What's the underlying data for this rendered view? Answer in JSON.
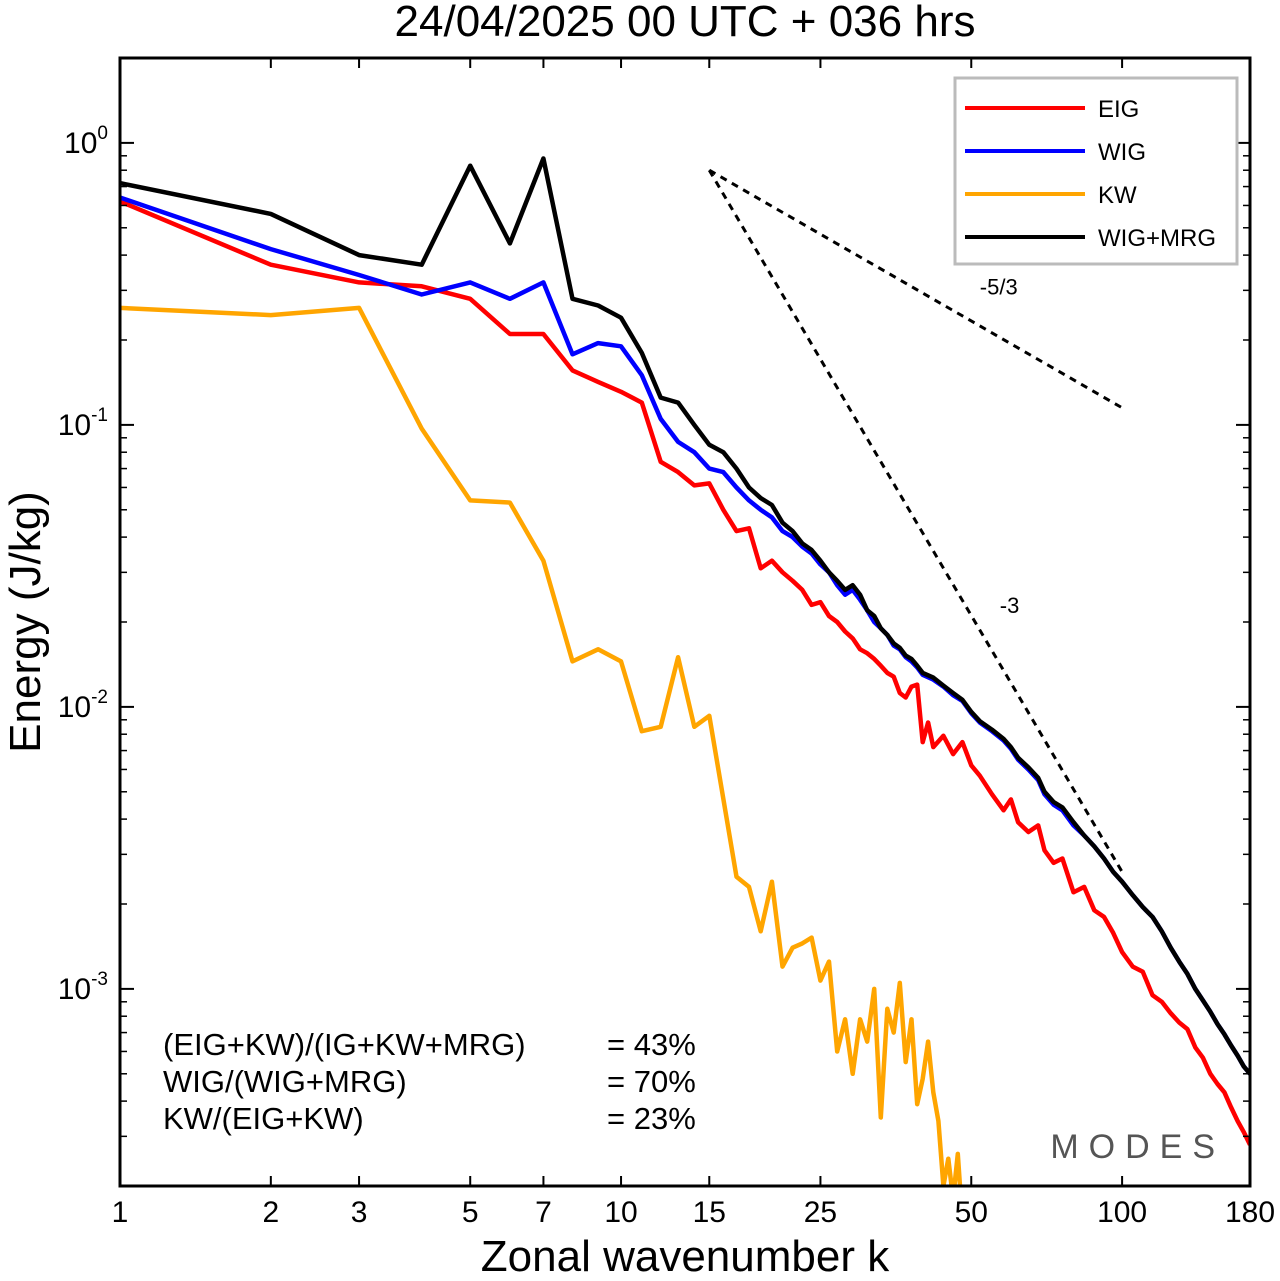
{
  "chart_data": {
    "type": "line",
    "title": "24/04/2025  00 UTC  + 036 hrs",
    "xlabel": "Zonal wavenumber k",
    "ylabel": "Energy (J/kg)",
    "x_scale": "log",
    "y_scale": "log",
    "xlim": [
      1,
      180
    ],
    "ylim": [
      0.0002,
      2.0
    ],
    "x_ticks": [
      1,
      2,
      3,
      5,
      7,
      10,
      15,
      25,
      50,
      100,
      180
    ],
    "y_ticks": [
      {
        "base": "10",
        "exp": "0",
        "value": 1
      },
      {
        "base": "10",
        "exp": "-1",
        "value": 0.1
      },
      {
        "base": "10",
        "exp": "-2",
        "value": 0.01
      },
      {
        "base": "10",
        "exp": "-3",
        "value": 0.001
      }
    ],
    "legend_position": "top-right",
    "series": [
      {
        "name": "EIG",
        "color": "#ff0000",
        "points": [
          [
            1,
            0.62
          ],
          [
            2,
            0.37
          ],
          [
            3,
            0.32
          ],
          [
            4,
            0.31
          ],
          [
            5,
            0.28
          ],
          [
            6,
            0.21
          ],
          [
            7,
            0.21
          ],
          [
            8,
            0.156
          ],
          [
            9,
            0.142
          ],
          [
            10,
            0.131
          ],
          [
            11,
            0.12
          ],
          [
            12,
            0.074
          ],
          [
            13,
            0.068
          ],
          [
            14,
            0.061
          ],
          [
            15,
            0.062
          ],
          [
            16,
            0.05
          ],
          [
            17,
            0.042
          ],
          [
            18,
            0.043
          ],
          [
            19,
            0.031
          ],
          [
            20,
            0.033
          ],
          [
            21,
            0.03
          ],
          [
            22,
            0.028
          ],
          [
            23,
            0.026
          ],
          [
            24,
            0.023
          ],
          [
            25,
            0.0235
          ],
          [
            26,
            0.021
          ],
          [
            27,
            0.02
          ],
          [
            28,
            0.0185
          ],
          [
            29,
            0.0175
          ],
          [
            30,
            0.016
          ],
          [
            31,
            0.0155
          ],
          [
            32,
            0.0148
          ],
          [
            33,
            0.014
          ],
          [
            34,
            0.0132
          ],
          [
            35,
            0.0128
          ],
          [
            36,
            0.0112
          ],
          [
            37,
            0.0108
          ],
          [
            38,
            0.0118
          ],
          [
            39,
            0.012
          ],
          [
            40,
            0.0075
          ],
          [
            41,
            0.0088
          ],
          [
            42,
            0.0072
          ],
          [
            44,
            0.0079
          ],
          [
            46,
            0.0068
          ],
          [
            48,
            0.0075
          ],
          [
            50,
            0.0062
          ],
          [
            52,
            0.0057
          ],
          [
            55,
            0.0049
          ],
          [
            58,
            0.0043
          ],
          [
            60,
            0.0047
          ],
          [
            62,
            0.0039
          ],
          [
            65,
            0.0036
          ],
          [
            68,
            0.0038
          ],
          [
            70,
            0.0031
          ],
          [
            73,
            0.0028
          ],
          [
            76,
            0.0029
          ],
          [
            80,
            0.0022
          ],
          [
            84,
            0.0023
          ],
          [
            88,
            0.0019
          ],
          [
            92,
            0.0018
          ],
          [
            96,
            0.00158
          ],
          [
            100,
            0.00135
          ],
          [
            105,
            0.0012
          ],
          [
            110,
            0.00115
          ],
          [
            115,
            0.00095
          ],
          [
            120,
            0.0009
          ],
          [
            125,
            0.00082
          ],
          [
            130,
            0.00076
          ],
          [
            135,
            0.00072
          ],
          [
            140,
            0.00062
          ],
          [
            145,
            0.00057
          ],
          [
            150,
            0.0005
          ],
          [
            155,
            0.00046
          ],
          [
            160,
            0.00043
          ],
          [
            165,
            0.00038
          ],
          [
            170,
            0.00034
          ],
          [
            175,
            0.00031
          ],
          [
            180,
            0.00028
          ]
        ]
      },
      {
        "name": "WIG",
        "color": "#0000ff",
        "points": [
          [
            1,
            0.64
          ],
          [
            2,
            0.42
          ],
          [
            3,
            0.34
          ],
          [
            4,
            0.29
          ],
          [
            5,
            0.32
          ],
          [
            6,
            0.28
          ],
          [
            7,
            0.32
          ],
          [
            8,
            0.178
          ],
          [
            9,
            0.195
          ],
          [
            10,
            0.19
          ],
          [
            11,
            0.15
          ],
          [
            12,
            0.105
          ],
          [
            13,
            0.087
          ],
          [
            14,
            0.08
          ],
          [
            15,
            0.07
          ],
          [
            16,
            0.068
          ],
          [
            17,
            0.06
          ],
          [
            18,
            0.054
          ],
          [
            19,
            0.05
          ],
          [
            20,
            0.047
          ],
          [
            21,
            0.042
          ],
          [
            22,
            0.04
          ],
          [
            23,
            0.037
          ],
          [
            24,
            0.035
          ],
          [
            25,
            0.032
          ],
          [
            26,
            0.03
          ],
          [
            27,
            0.027
          ],
          [
            28,
            0.025
          ],
          [
            29,
            0.026
          ],
          [
            30,
            0.024
          ],
          [
            31,
            0.022
          ],
          [
            32,
            0.02
          ],
          [
            33,
            0.019
          ],
          [
            34,
            0.018
          ],
          [
            35,
            0.0165
          ],
          [
            36,
            0.016
          ],
          [
            37,
            0.015
          ],
          [
            38,
            0.0145
          ],
          [
            39,
            0.0138
          ],
          [
            40,
            0.013
          ],
          [
            42,
            0.0125
          ],
          [
            44,
            0.0118
          ],
          [
            46,
            0.011
          ],
          [
            48,
            0.0105
          ],
          [
            50,
            0.0095
          ],
          [
            52,
            0.0088
          ],
          [
            55,
            0.0082
          ],
          [
            58,
            0.0076
          ],
          [
            60,
            0.0071
          ],
          [
            62,
            0.0065
          ],
          [
            65,
            0.006
          ],
          [
            68,
            0.0055
          ],
          [
            70,
            0.0049
          ],
          [
            73,
            0.0045
          ],
          [
            76,
            0.0043
          ],
          [
            80,
            0.0038
          ],
          [
            84,
            0.0035
          ],
          [
            88,
            0.0032
          ],
          [
            92,
            0.0029
          ],
          [
            96,
            0.0026
          ],
          [
            100,
            0.0024
          ],
          [
            105,
            0.00215
          ],
          [
            110,
            0.00195
          ],
          [
            115,
            0.0018
          ],
          [
            120,
            0.0016
          ],
          [
            125,
            0.0014
          ],
          [
            130,
            0.00125
          ],
          [
            135,
            0.00113
          ],
          [
            140,
            0.001
          ],
          [
            145,
            0.00091
          ],
          [
            150,
            0.00083
          ],
          [
            155,
            0.00075
          ],
          [
            160,
            0.00069
          ],
          [
            165,
            0.00063
          ],
          [
            170,
            0.00058
          ],
          [
            175,
            0.00053
          ],
          [
            180,
            0.0005
          ]
        ]
      },
      {
        "name": "KW",
        "color": "#ffa500",
        "points": [
          [
            1,
            0.26
          ],
          [
            2,
            0.245
          ],
          [
            3,
            0.26
          ],
          [
            4,
            0.097
          ],
          [
            5,
            0.054
          ],
          [
            6,
            0.053
          ],
          [
            7,
            0.033
          ],
          [
            8,
            0.0145
          ],
          [
            9,
            0.016
          ],
          [
            10,
            0.0145
          ],
          [
            11,
            0.0082
          ],
          [
            12,
            0.0085
          ],
          [
            13,
            0.015
          ],
          [
            14,
            0.0085
          ],
          [
            15,
            0.0093
          ],
          [
            17,
            0.0025
          ],
          [
            18,
            0.0023
          ],
          [
            19,
            0.0016
          ],
          [
            20,
            0.0024
          ],
          [
            21,
            0.0012
          ],
          [
            22,
            0.0014
          ],
          [
            23,
            0.00145
          ],
          [
            24,
            0.00152
          ],
          [
            25,
            0.00107
          ],
          [
            26,
            0.00125
          ],
          [
            27,
            0.0006
          ],
          [
            28,
            0.00078
          ],
          [
            29,
            0.0005
          ],
          [
            30,
            0.00078
          ],
          [
            31,
            0.00065
          ],
          [
            32,
            0.001
          ],
          [
            33,
            0.00035
          ],
          [
            34,
            0.00085
          ],
          [
            35,
            0.0007
          ],
          [
            36,
            0.00105
          ],
          [
            37,
            0.00055
          ],
          [
            38,
            0.00078
          ],
          [
            39,
            0.00039
          ],
          [
            40,
            0.00048
          ],
          [
            41,
            0.00065
          ],
          [
            42,
            0.00043
          ],
          [
            43,
            0.00034
          ],
          [
            44,
            0.0002
          ],
          [
            45,
            0.00025
          ],
          [
            46,
            0.00018
          ],
          [
            47,
            0.00026
          ],
          [
            48,
            0.00015
          ],
          [
            50,
            0.0002
          ]
        ]
      },
      {
        "name": "WIG+MRG",
        "color": "#000000",
        "points": [
          [
            1,
            0.72
          ],
          [
            2,
            0.56
          ],
          [
            3,
            0.4
          ],
          [
            4,
            0.37
          ],
          [
            5,
            0.83
          ],
          [
            6,
            0.44
          ],
          [
            7,
            0.88
          ],
          [
            8,
            0.28
          ],
          [
            9,
            0.265
          ],
          [
            10,
            0.24
          ],
          [
            11,
            0.18
          ],
          [
            12,
            0.125
          ],
          [
            13,
            0.12
          ],
          [
            14,
            0.1
          ],
          [
            15,
            0.085
          ],
          [
            16,
            0.08
          ],
          [
            17,
            0.07
          ],
          [
            18,
            0.06
          ],
          [
            19,
            0.055
          ],
          [
            20,
            0.052
          ],
          [
            21,
            0.045
          ],
          [
            22,
            0.042
          ],
          [
            23,
            0.038
          ],
          [
            24,
            0.036
          ],
          [
            25,
            0.033
          ],
          [
            26,
            0.03
          ],
          [
            27,
            0.028
          ],
          [
            28,
            0.026
          ],
          [
            29,
            0.027
          ],
          [
            30,
            0.025
          ],
          [
            31,
            0.022
          ],
          [
            32,
            0.021
          ],
          [
            33,
            0.019
          ],
          [
            34,
            0.018
          ],
          [
            35,
            0.0168
          ],
          [
            36,
            0.0162
          ],
          [
            37,
            0.0152
          ],
          [
            38,
            0.0148
          ],
          [
            39,
            0.014
          ],
          [
            40,
            0.0132
          ],
          [
            42,
            0.0127
          ],
          [
            44,
            0.0119
          ],
          [
            46,
            0.0112
          ],
          [
            48,
            0.0106
          ],
          [
            50,
            0.0096
          ],
          [
            52,
            0.0089
          ],
          [
            55,
            0.0083
          ],
          [
            58,
            0.0077
          ],
          [
            60,
            0.0072
          ],
          [
            62,
            0.0066
          ],
          [
            65,
            0.0061
          ],
          [
            68,
            0.0056
          ],
          [
            70,
            0.005
          ],
          [
            73,
            0.0046
          ],
          [
            76,
            0.0044
          ],
          [
            80,
            0.0039
          ],
          [
            84,
            0.0035
          ],
          [
            88,
            0.0032
          ],
          [
            92,
            0.0029
          ],
          [
            96,
            0.0026
          ],
          [
            100,
            0.0024
          ],
          [
            105,
            0.00215
          ],
          [
            110,
            0.00195
          ],
          [
            115,
            0.0018
          ],
          [
            120,
            0.0016
          ],
          [
            125,
            0.0014
          ],
          [
            130,
            0.00125
          ],
          [
            135,
            0.00113
          ],
          [
            140,
            0.001
          ],
          [
            145,
            0.00091
          ],
          [
            150,
            0.00083
          ],
          [
            155,
            0.00075
          ],
          [
            160,
            0.00069
          ],
          [
            165,
            0.00063
          ],
          [
            170,
            0.00058
          ],
          [
            175,
            0.00053
          ],
          [
            180,
            0.0005
          ]
        ]
      }
    ],
    "reference_lines": [
      {
        "label": "-5/3",
        "x": [
          15,
          100
        ],
        "y": [
          0.8,
          0.115
        ]
      },
      {
        "label": "-3",
        "x": [
          15,
          100
        ],
        "y": [
          0.8,
          0.0026
        ]
      }
    ],
    "annotations": [
      {
        "label": "(EIG+KW)/(IG+KW+MRG)",
        "value": "= 43%"
      },
      {
        "label": "WIG/(WIG+MRG)",
        "value": "= 70%"
      },
      {
        "label": "KW/(EIG+KW)",
        "value": "= 23%"
      }
    ],
    "watermark": "MODES"
  }
}
